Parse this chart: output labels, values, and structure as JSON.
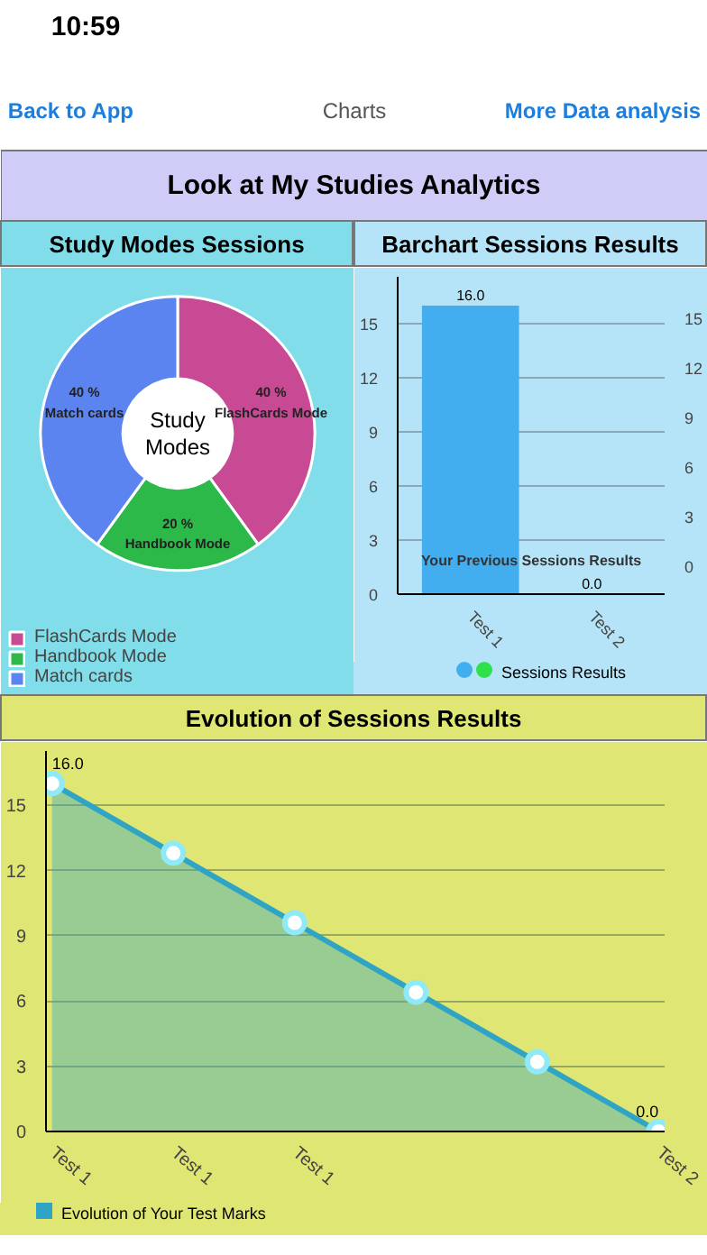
{
  "chart_data": [
    {
      "type": "other",
      "title": "Look at My Studies Analytics",
      "annotations": [
        "10:59",
        "Back to App",
        "Charts",
        "More Data analysis"
      ]
    },
    {
      "type": "donut",
      "title": "Study Modes Sessions",
      "categories": [
        "FlashCards Mode",
        "Handbook Mode",
        "Match cards"
      ],
      "values": [
        40,
        20,
        40
      ],
      "colors": [
        "#c94a94",
        "#2db84a",
        "#5b84f0"
      ],
      "value_labels": [
        "40 %",
        "20 %",
        "40 %"
      ],
      "annotations": [
        "Study Modes"
      ],
      "legend": "bottom left"
    },
    {
      "type": "bar",
      "title": "Barchart Sessions Results",
      "categories": [
        "Test 1",
        "Test 2"
      ],
      "series": [
        {
          "name": "Sessions Results",
          "values": [
            16.0,
            0.0
          ]
        }
      ],
      "colors": [
        "#42aef0",
        "#2ee04a"
      ],
      "value_labels": [
        "16.0",
        "0.0"
      ],
      "ylim": [
        0,
        17.6
      ],
      "yticks": [
        0,
        3,
        6,
        9,
        12,
        15
      ],
      "y2lim": [
        -1.7,
        17.5
      ],
      "y2ticks": [
        0,
        3,
        6,
        9,
        12,
        15
      ],
      "grid": "y",
      "legend": "bottom",
      "annotations": [
        "Your Previous Sessions Results"
      ]
    },
    {
      "type": "area",
      "title": "Evolution of Sessions Results",
      "categories": [
        "Test 1",
        "Test 1",
        "Test 1",
        null,
        null,
        "Test 2"
      ],
      "series": [
        {
          "name": "Evolution of Your Test Marks",
          "color": "#2fa4c4",
          "values": [
            16.0,
            12.8,
            9.6,
            6.4,
            3.2,
            0.0
          ]
        }
      ],
      "value_labels": [
        "16.0",
        null,
        null,
        null,
        null,
        "0.0"
      ],
      "ylim": [
        0,
        17.5
      ],
      "yticks": [
        0,
        3,
        6,
        9,
        12,
        15
      ],
      "grid": "y",
      "marker": "circle",
      "legend": "bottom left"
    }
  ]
}
